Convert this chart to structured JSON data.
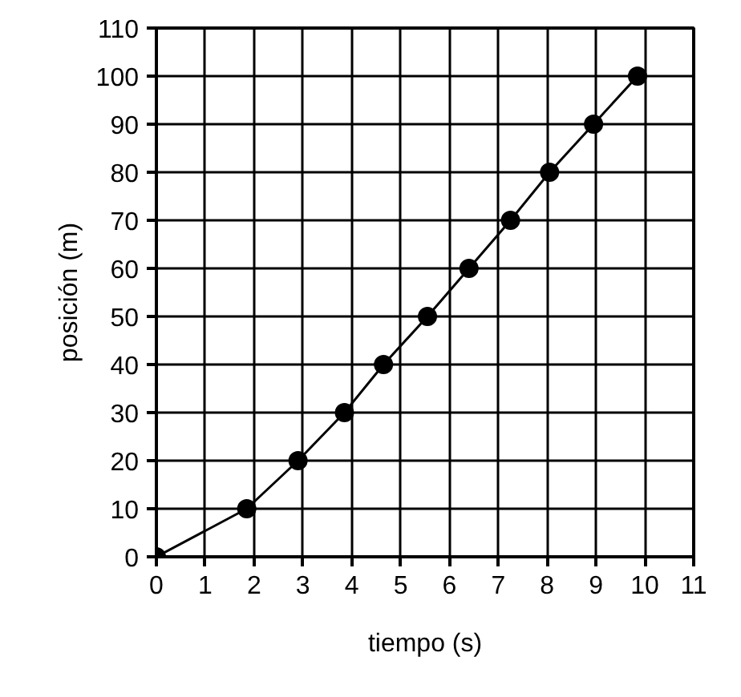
{
  "chart_data": {
    "type": "line",
    "xlabel": "tiempo (s)",
    "ylabel": "posición (m)",
    "x": [
      0,
      1.85,
      2.9,
      3.85,
      4.65,
      5.55,
      6.4,
      7.25,
      8.05,
      8.95,
      9.85
    ],
    "series": [
      {
        "color": "#000000",
        "values": [
          0,
          10,
          20,
          30,
          40,
          50,
          60,
          70,
          80,
          90,
          100
        ]
      }
    ],
    "xlim": [
      0,
      11
    ],
    "ylim": [
      0,
      110
    ],
    "xticks": [
      0,
      1,
      2,
      3,
      4,
      5,
      6,
      7,
      8,
      9,
      10,
      11
    ],
    "yticks": [
      0,
      10,
      20,
      30,
      40,
      50,
      60,
      70,
      80,
      90,
      100,
      110
    ],
    "grid": true,
    "marker": "circle",
    "line_style": "solid"
  }
}
